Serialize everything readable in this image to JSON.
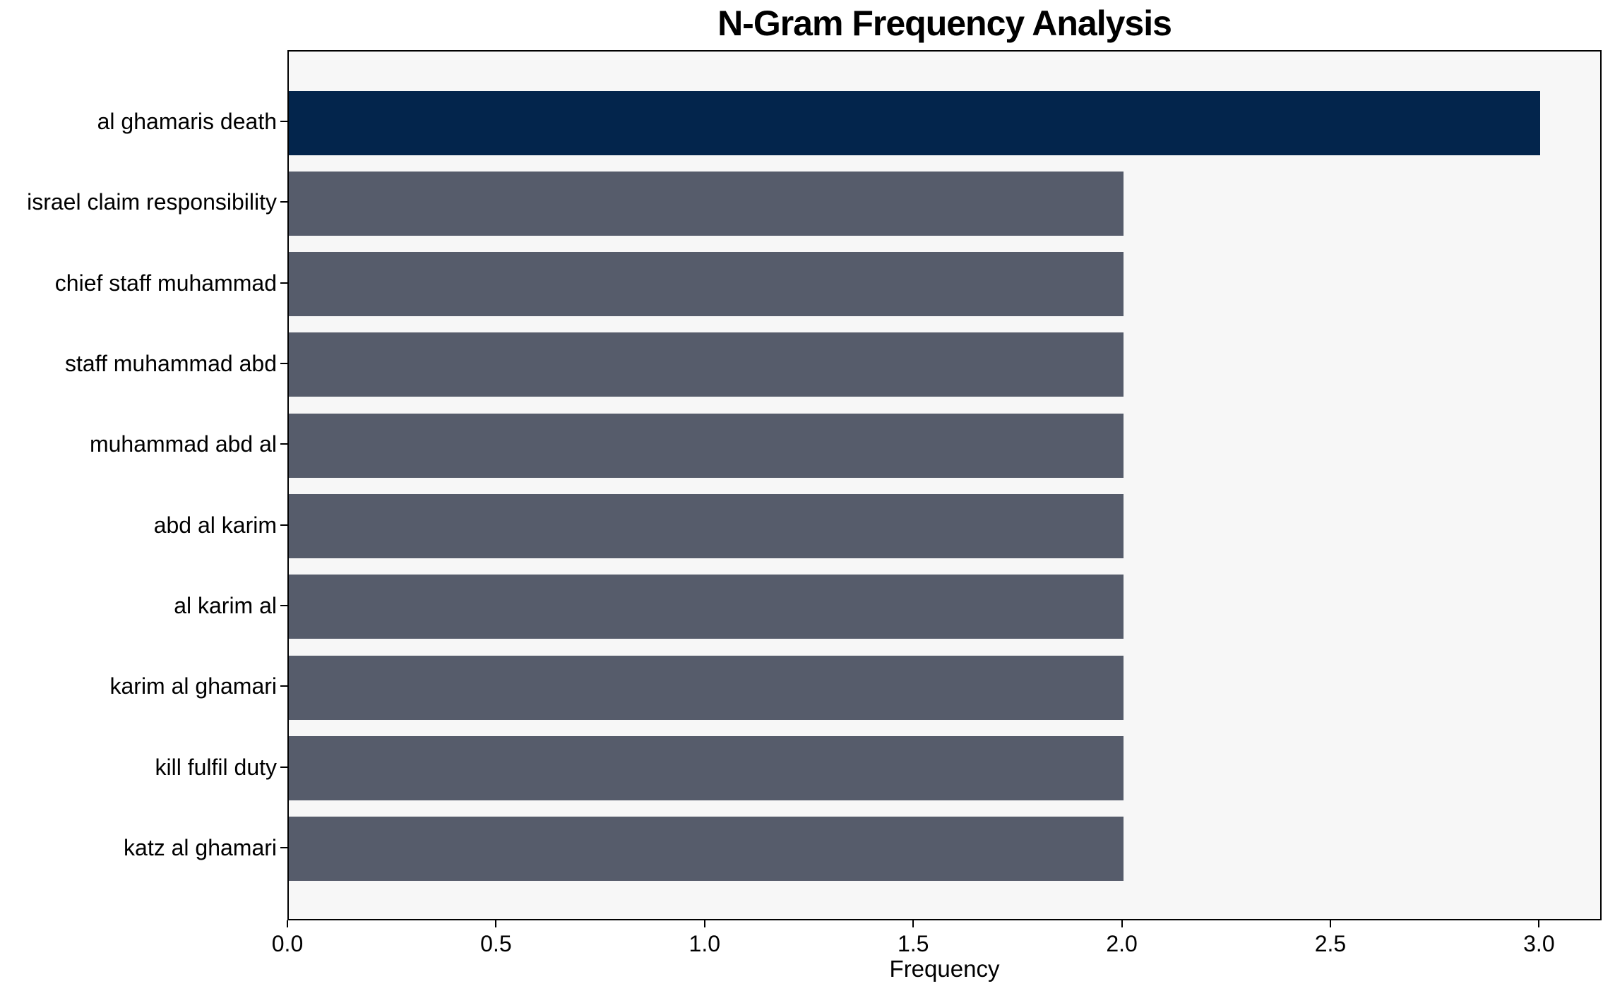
{
  "chart_data": {
    "type": "bar",
    "orientation": "horizontal",
    "title": "N-Gram Frequency Analysis",
    "xlabel": "Frequency",
    "ylabel": "",
    "categories": [
      "al ghamaris death",
      "israel claim responsibility",
      "chief staff muhammad",
      "staff muhammad abd",
      "muhammad abd al",
      "abd al karim",
      "al karim al",
      "karim al ghamari",
      "kill fulfil duty",
      "katz al ghamari"
    ],
    "values": [
      3,
      2,
      2,
      2,
      2,
      2,
      2,
      2,
      2,
      2
    ],
    "bar_colors": [
      "#03254c",
      "#565c6b",
      "#565c6b",
      "#565c6b",
      "#565c6b",
      "#565c6b",
      "#565c6b",
      "#565c6b",
      "#565c6b",
      "#565c6b"
    ],
    "xlim": [
      0,
      3.15
    ],
    "xticks": [
      "0.0",
      "0.5",
      "1.0",
      "1.5",
      "2.0",
      "2.5",
      "3.0"
    ],
    "xtick_values": [
      0,
      0.5,
      1,
      1.5,
      2,
      2.5,
      3
    ],
    "grid": false,
    "legend": null,
    "colors": {
      "bar_highlight": "#03254c",
      "bar_default": "#565c6b",
      "plot_background": "#f7f7f7",
      "figure_background": "#ffffff",
      "text": "#000000",
      "spine": "#000000"
    }
  }
}
